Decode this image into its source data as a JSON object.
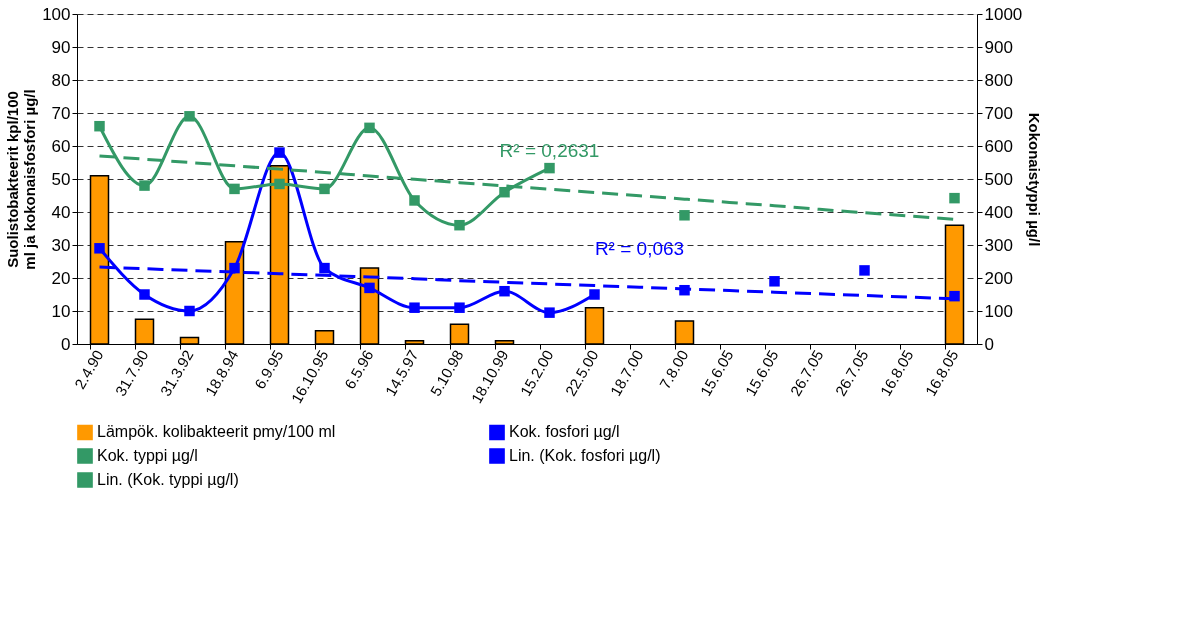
{
  "chart_data": {
    "type": "bar",
    "categories": [
      "2.4.90",
      "31.7.90",
      "31.3.92",
      "18.8.94",
      "6.9.95",
      "16.10.95",
      "6.5.96",
      "14.5.97",
      "5.10.98",
      "18.10.99",
      "15.2.00",
      "22.5.00",
      "18.7.00",
      "7.8.00",
      "15.6.05",
      "15.6.05",
      "26.7.05",
      "26.7.05",
      "16.8.05",
      "16.8.05"
    ],
    "ylabel": "Suolistobakteerit kpl/100 ml ja kokonaisfosfori µg/l",
    "y2label": "Kokonaistyppi µg/l",
    "ylim": [
      0,
      100
    ],
    "yticks": [
      0,
      10,
      20,
      30,
      40,
      50,
      60,
      70,
      80,
      90,
      100
    ],
    "y2lim": [
      0,
      1000
    ],
    "y2ticks": [
      0,
      100,
      200,
      300,
      400,
      500,
      600,
      700,
      800,
      900,
      1000
    ],
    "grid": "y",
    "legend": "bottom",
    "series": [
      {
        "name": "Lämpök. kolibakteerit pmy/100 ml",
        "type": "bar",
        "color": "#ff9900",
        "values": [
          51,
          7.5,
          2,
          31,
          54,
          4,
          23,
          1,
          6,
          1,
          null,
          11,
          null,
          7,
          null,
          null,
          null,
          null,
          null,
          36
        ]
      },
      {
        "name": "Kok. fosfori µg/l",
        "type": "line",
        "color": "#0000ff",
        "marker": "square",
        "line_style": "solid",
        "values": [
          29,
          15,
          10,
          23,
          58,
          23,
          17,
          11,
          11,
          16,
          9.5,
          15,
          null,
          16.3,
          null,
          19,
          null,
          22.3,
          null,
          14.5
        ]
      },
      {
        "name": "Kok. typpi µg/l",
        "type": "line",
        "axis": "y2",
        "color": "#339966",
        "marker": "square",
        "line_style": "solid",
        "values": [
          660,
          480,
          690,
          470,
          485,
          470,
          655,
          435,
          360,
          460,
          533,
          null,
          null,
          390,
          null,
          null,
          null,
          null,
          null,
          442
        ]
      },
      {
        "name": "Lin. (Kok. fosfori µg/l)",
        "type": "line",
        "color": "#0000ff",
        "marker": "none",
        "line_style": "dashed",
        "values": [
          23.3,
          22.8,
          22.3,
          21.8,
          21.3,
          20.8,
          20.3,
          19.8,
          19.2,
          18.7,
          18.2,
          17.7,
          17.2,
          16.7,
          16.2,
          15.7,
          15.2,
          14.7,
          14.2,
          13.7
        ]
      },
      {
        "name": "Lin. (Kok. typpi µg/l)",
        "type": "line",
        "axis": "y2",
        "color": "#339966",
        "marker": "none",
        "line_style": "dashed",
        "values": [
          570,
          560,
          550,
          540,
          530,
          520,
          509,
          499,
          489,
          479,
          469,
          459,
          449,
          439,
          429,
          419,
          408,
          398,
          388,
          378
        ]
      }
    ],
    "annotations": [
      "R² = 0,063",
      "R² = 0,2631"
    ]
  }
}
